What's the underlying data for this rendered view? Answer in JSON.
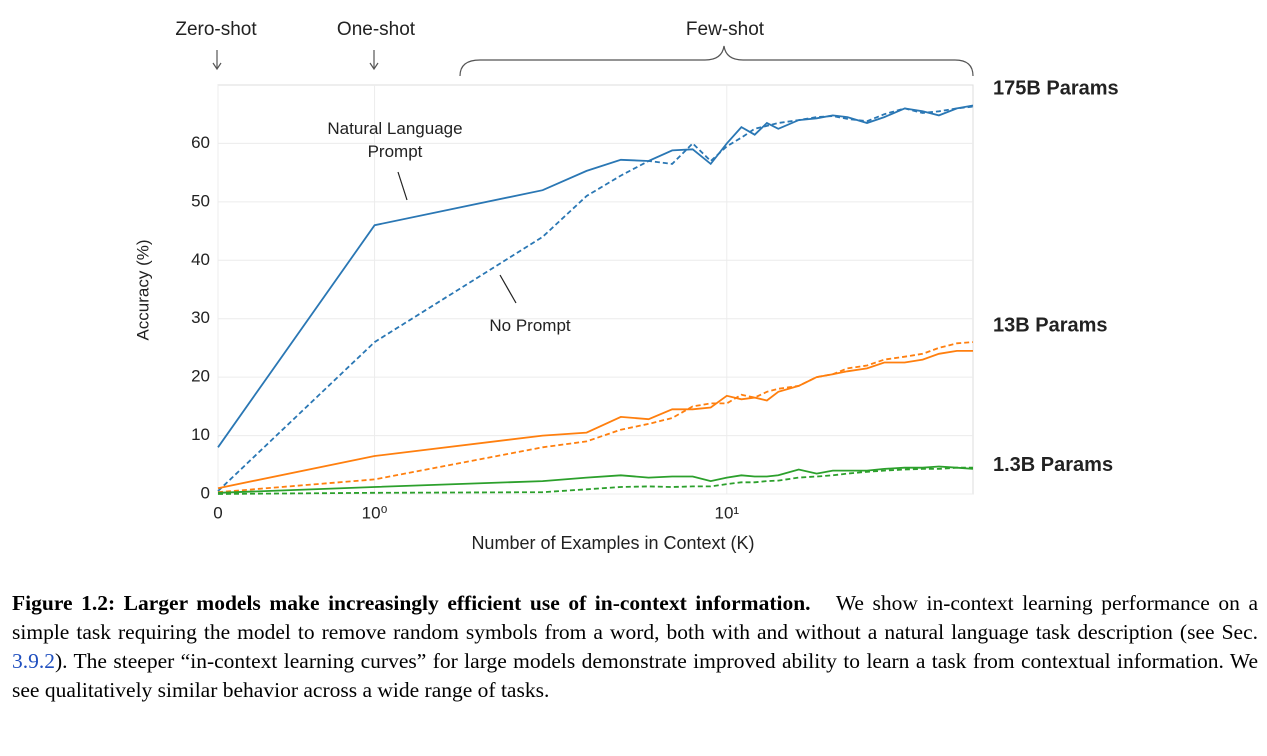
{
  "chart_data": {
    "type": "line",
    "x_label": "Number of Examples in Context  (K)",
    "y_label": "Accuracy (%)",
    "xscale": "symlog",
    "linthresh": 1,
    "linscale": 0.4,
    "xlim": [
      0,
      50
    ],
    "xticks": [
      0,
      {
        "value": 1,
        "label": "10⁰"
      },
      {
        "value": 10,
        "label": "10¹"
      }
    ],
    "ylim": [
      0,
      70
    ],
    "yticks": [
      0,
      10,
      20,
      30,
      40,
      50,
      60
    ],
    "grid": true,
    "shot_labels": [
      "Zero-shot",
      "One-shot",
      "Few-shot"
    ],
    "prompt_annotation": "Natural Language Prompt",
    "no_prompt_annotation": "No Prompt",
    "x": [
      0,
      1,
      3,
      4,
      5,
      6,
      7,
      8,
      9,
      10,
      11,
      12,
      13,
      14,
      16,
      18,
      20,
      22,
      25,
      28,
      32,
      36,
      40,
      45,
      50
    ],
    "series": [
      {
        "name": "175B Params",
        "color": "#2a77b4",
        "label_color": "#4a8cc2",
        "values": [
          8,
          46,
          52,
          55.3,
          57.2,
          57,
          58.8,
          59,
          56.5,
          60,
          62.8,
          61.5,
          63.5,
          62.5,
          64,
          64.3,
          64.8,
          64.5,
          63.5,
          64.5,
          66,
          65.5,
          64.8,
          66,
          66.5
        ],
        "no_prompt_values": [
          0.5,
          26,
          44,
          51,
          54.5,
          57,
          56.5,
          60,
          57,
          59.5,
          61,
          62.5,
          63,
          63.5,
          64,
          64.5,
          64.7,
          64.2,
          63.8,
          65,
          66,
          65.2,
          65.5,
          66,
          66.3
        ]
      },
      {
        "name": "13B Params",
        "color": "#ff7f0e",
        "label_color": "#f5821f",
        "values": [
          1,
          6.5,
          10,
          10.5,
          13.2,
          12.8,
          14.5,
          14.5,
          14.8,
          16.8,
          16.2,
          16.5,
          16,
          17.5,
          18.5,
          20,
          20.5,
          21,
          21.5,
          22.5,
          22.5,
          23,
          24,
          24.5,
          24.5
        ],
        "no_prompt_values": [
          0.3,
          2.5,
          8,
          9,
          11,
          12,
          13,
          15,
          15.5,
          15.5,
          17,
          16.5,
          17.5,
          18,
          18.5,
          20,
          20.5,
          21.5,
          22,
          23,
          23.5,
          24,
          25,
          25.8,
          26
        ]
      },
      {
        "name": "1.3B Params",
        "color": "#2ca02c",
        "label_color": "#3a9e3a",
        "values": [
          0.2,
          1.2,
          2.2,
          2.8,
          3.2,
          2.8,
          3,
          3,
          2.2,
          2.8,
          3.2,
          3,
          3,
          3.2,
          4.2,
          3.5,
          4,
          4,
          4,
          4.3,
          4.5,
          4.5,
          4.7,
          4.5,
          4.3
        ],
        "no_prompt_values": [
          0,
          0.2,
          0.3,
          0.8,
          1.2,
          1.3,
          1.2,
          1.3,
          1.3,
          1.7,
          2,
          2,
          2.2,
          2.3,
          2.8,
          3,
          3.2,
          3.5,
          3.8,
          4,
          4.2,
          4.3,
          4.3,
          4.5,
          4.5
        ]
      }
    ]
  },
  "caption": {
    "label": "Figure 1.2: Larger models make increasingly efficient use of in-context information.",
    "text_before": "We show in-context learning performance on a simple task requiring the model to remove random symbols from a word, both with and without a natural language task description (see Sec.",
    "reference": "3.9.2",
    "text_after": "). The steeper “in-context learning curves” for large models demonstrate improved ability to learn a task from contextual information. We see qualitatively similar behavior across a wide range of tasks."
  }
}
